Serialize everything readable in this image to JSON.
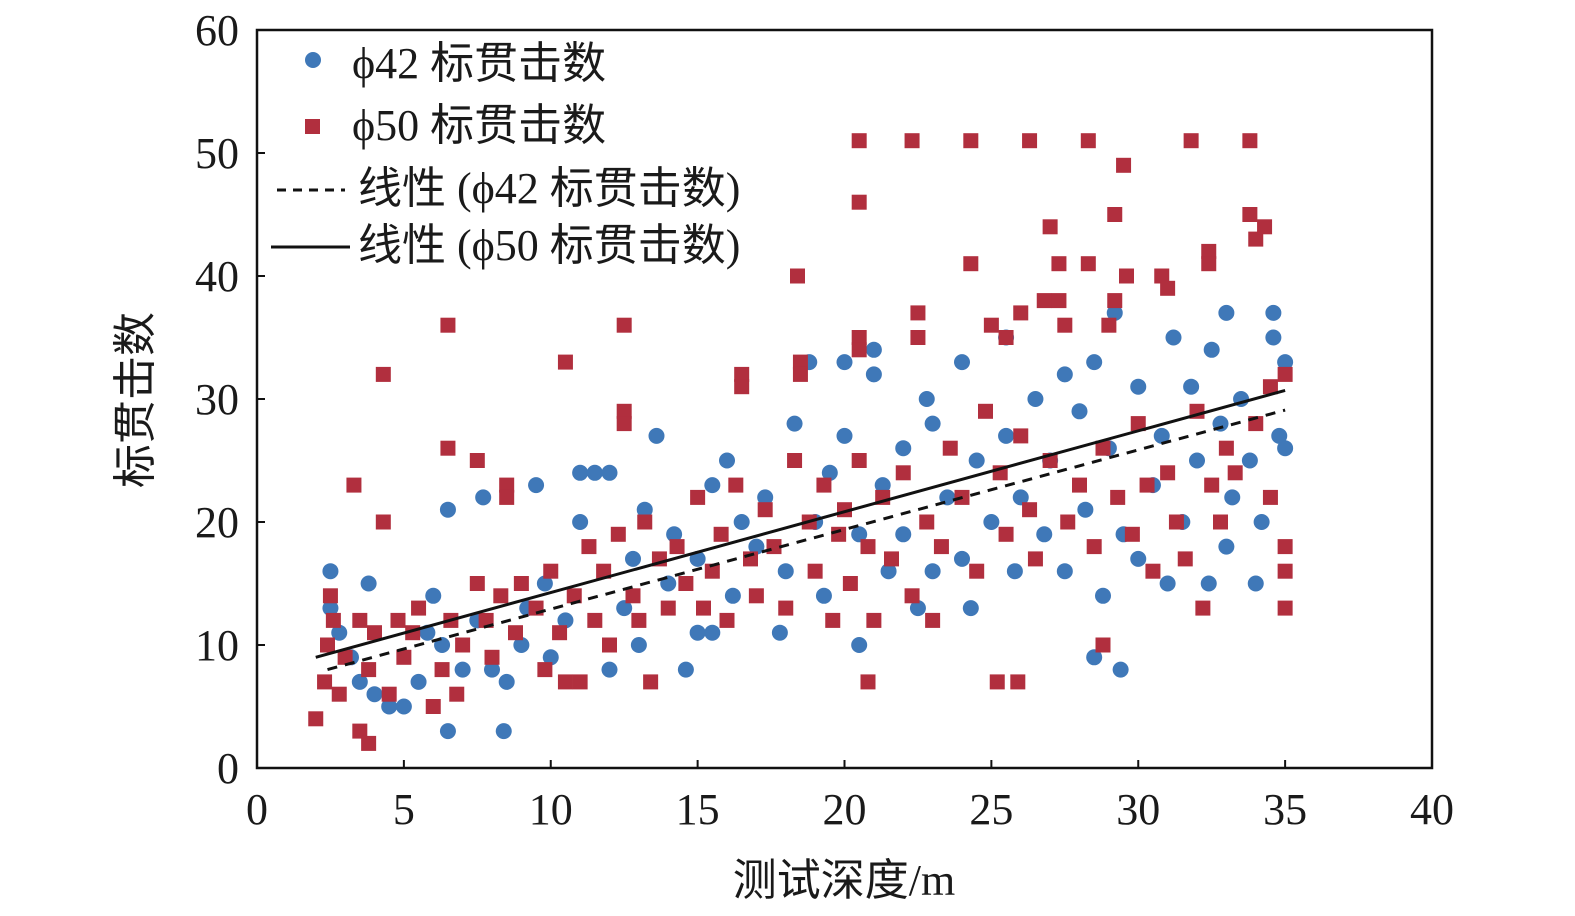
{
  "chart_data": {
    "type": "scatter",
    "title": "",
    "xlabel": "测试深度/m",
    "ylabel": "标贯击数",
    "xlim": [
      0,
      40
    ],
    "ylim": [
      0,
      60
    ],
    "xticks": [
      "0",
      "5",
      "10",
      "15",
      "20",
      "25",
      "30",
      "35",
      "40"
    ],
    "yticks": [
      "0",
      "10",
      "20",
      "30",
      "40",
      "50",
      "60"
    ],
    "grid": false,
    "legend_position": "top-left",
    "series": [
      {
        "name": "ϕ42 标贯击数",
        "marker": "circle",
        "color": "#3f78b8",
        "points": [
          [
            2.5,
            16
          ],
          [
            2.5,
            13
          ],
          [
            3.8,
            15
          ],
          [
            2.8,
            11
          ],
          [
            3.2,
            9
          ],
          [
            3.5,
            7
          ],
          [
            4,
            6
          ],
          [
            4.5,
            5
          ],
          [
            5,
            5
          ],
          [
            5.5,
            7
          ],
          [
            5.8,
            11
          ],
          [
            6,
            14
          ],
          [
            6.3,
            10
          ],
          [
            6.5,
            3
          ],
          [
            6.5,
            21
          ],
          [
            7,
            8
          ],
          [
            7.5,
            12
          ],
          [
            7.7,
            22
          ],
          [
            8,
            8
          ],
          [
            8.4,
            3
          ],
          [
            8.5,
            7
          ],
          [
            9,
            10
          ],
          [
            9.2,
            13
          ],
          [
            9.5,
            23
          ],
          [
            9.8,
            15
          ],
          [
            10,
            9
          ],
          [
            10.5,
            12
          ],
          [
            11,
            20
          ],
          [
            11,
            24
          ],
          [
            11.5,
            24
          ],
          [
            12,
            24
          ],
          [
            12,
            8
          ],
          [
            12.5,
            13
          ],
          [
            12.8,
            17
          ],
          [
            13,
            10
          ],
          [
            13.2,
            21
          ],
          [
            13.6,
            27
          ],
          [
            14,
            15
          ],
          [
            14.2,
            19
          ],
          [
            14.6,
            8
          ],
          [
            15,
            11
          ],
          [
            15.5,
            11
          ],
          [
            15,
            17
          ],
          [
            15.5,
            23
          ],
          [
            16,
            25
          ],
          [
            16.2,
            14
          ],
          [
            16.5,
            20
          ],
          [
            17,
            18
          ],
          [
            17.3,
            22
          ],
          [
            17.8,
            11
          ],
          [
            18,
            16
          ],
          [
            18.3,
            28
          ],
          [
            18.8,
            33
          ],
          [
            19,
            20
          ],
          [
            19.3,
            14
          ],
          [
            19.5,
            24
          ],
          [
            20,
            33
          ],
          [
            20,
            27
          ],
          [
            20.5,
            10
          ],
          [
            20.5,
            19
          ],
          [
            21,
            32
          ],
          [
            21,
            34
          ],
          [
            21.3,
            23
          ],
          [
            21.5,
            16
          ],
          [
            22,
            26
          ],
          [
            22,
            19
          ],
          [
            22.5,
            13
          ],
          [
            22.8,
            30
          ],
          [
            23,
            28
          ],
          [
            23,
            16
          ],
          [
            23.5,
            22
          ],
          [
            24,
            33
          ],
          [
            24,
            17
          ],
          [
            24.3,
            13
          ],
          [
            24.5,
            25
          ],
          [
            25,
            20
          ],
          [
            25.5,
            35
          ],
          [
            25.5,
            27
          ],
          [
            25.8,
            16
          ],
          [
            26,
            22
          ],
          [
            26.5,
            30
          ],
          [
            26.8,
            19
          ],
          [
            27,
            25
          ],
          [
            27.5,
            32
          ],
          [
            27.5,
            16
          ],
          [
            28,
            29
          ],
          [
            28.2,
            21
          ],
          [
            28.5,
            33
          ],
          [
            28.5,
            9
          ],
          [
            28.8,
            14
          ],
          [
            29,
            26
          ],
          [
            29.2,
            37
          ],
          [
            29.4,
            8
          ],
          [
            29.5,
            19
          ],
          [
            30,
            31
          ],
          [
            30,
            17
          ],
          [
            30.5,
            23
          ],
          [
            30.8,
            27
          ],
          [
            31,
            15
          ],
          [
            31.2,
            35
          ],
          [
            31.5,
            20
          ],
          [
            31.8,
            31
          ],
          [
            32,
            25
          ],
          [
            32.4,
            15
          ],
          [
            32.5,
            34
          ],
          [
            32.8,
            28
          ],
          [
            33,
            37
          ],
          [
            33,
            18
          ],
          [
            33.2,
            22
          ],
          [
            33.5,
            30
          ],
          [
            33.8,
            25
          ],
          [
            34,
            15
          ],
          [
            34.2,
            20
          ],
          [
            34.6,
            37
          ],
          [
            34.6,
            35
          ],
          [
            34.8,
            27
          ],
          [
            35,
            33
          ],
          [
            35,
            26
          ]
        ]
      },
      {
        "name": "ϕ50 标贯击数",
        "marker": "square",
        "color": "#b12f3e",
        "points": [
          [
            2,
            4
          ],
          [
            2.3,
            7
          ],
          [
            2.4,
            10
          ],
          [
            2.5,
            14
          ],
          [
            2.6,
            12
          ],
          [
            2.8,
            6
          ],
          [
            3,
            9
          ],
          [
            3.3,
            23
          ],
          [
            3.5,
            3
          ],
          [
            3.5,
            12
          ],
          [
            3.8,
            2
          ],
          [
            3.8,
            8
          ],
          [
            4,
            11
          ],
          [
            4.3,
            32
          ],
          [
            4.3,
            20
          ],
          [
            4.5,
            6
          ],
          [
            4.8,
            12
          ],
          [
            5,
            9
          ],
          [
            5.3,
            11
          ],
          [
            5.5,
            13
          ],
          [
            6,
            5
          ],
          [
            6.3,
            8
          ],
          [
            6.5,
            36
          ],
          [
            6.5,
            26
          ],
          [
            6.6,
            12
          ],
          [
            6.8,
            6
          ],
          [
            7,
            10
          ],
          [
            7.5,
            25
          ],
          [
            7.5,
            15
          ],
          [
            7.8,
            12
          ],
          [
            8,
            9
          ],
          [
            8.3,
            14
          ],
          [
            8.5,
            23
          ],
          [
            8.5,
            22
          ],
          [
            8.8,
            11
          ],
          [
            9,
            15
          ],
          [
            9.5,
            13
          ],
          [
            9.8,
            8
          ],
          [
            10,
            16
          ],
          [
            10.3,
            11
          ],
          [
            10.5,
            33
          ],
          [
            10.5,
            7
          ],
          [
            10.8,
            14
          ],
          [
            11,
            7
          ],
          [
            11.3,
            18
          ],
          [
            11.5,
            12
          ],
          [
            11.8,
            16
          ],
          [
            12,
            10
          ],
          [
            12.3,
            19
          ],
          [
            12.5,
            36
          ],
          [
            12.5,
            29
          ],
          [
            12.5,
            28
          ],
          [
            12.8,
            14
          ],
          [
            13,
            12
          ],
          [
            13.2,
            20
          ],
          [
            13.4,
            7
          ],
          [
            13.7,
            17
          ],
          [
            14,
            13
          ],
          [
            14.3,
            18
          ],
          [
            14.6,
            15
          ],
          [
            15,
            22
          ],
          [
            15.2,
            13
          ],
          [
            15.5,
            16
          ],
          [
            15.8,
            19
          ],
          [
            16,
            12
          ],
          [
            16.3,
            23
          ],
          [
            16.5,
            32
          ],
          [
            16.5,
            31
          ],
          [
            16.8,
            17
          ],
          [
            17,
            14
          ],
          [
            17.3,
            21
          ],
          [
            17.6,
            18
          ],
          [
            18,
            13
          ],
          [
            18.3,
            25
          ],
          [
            18.4,
            40
          ],
          [
            18.5,
            33
          ],
          [
            18.5,
            32
          ],
          [
            18.8,
            20
          ],
          [
            19,
            16
          ],
          [
            19.3,
            23
          ],
          [
            19.6,
            12
          ],
          [
            19.8,
            19
          ],
          [
            20,
            21
          ],
          [
            20.2,
            15
          ],
          [
            20.5,
            51
          ],
          [
            20.5,
            46
          ],
          [
            20.5,
            35
          ],
          [
            20.5,
            34
          ],
          [
            20.5,
            25
          ],
          [
            20.8,
            7
          ],
          [
            20.8,
            18
          ],
          [
            21,
            12
          ],
          [
            21.3,
            22
          ],
          [
            21.6,
            17
          ],
          [
            22,
            24
          ],
          [
            22.3,
            51
          ],
          [
            22.3,
            14
          ],
          [
            22.5,
            37
          ],
          [
            22.5,
            35
          ],
          [
            22.8,
            20
          ],
          [
            23,
            12
          ],
          [
            23.3,
            18
          ],
          [
            23.6,
            26
          ],
          [
            24,
            22
          ],
          [
            24.3,
            51
          ],
          [
            24.3,
            41
          ],
          [
            24.5,
            16
          ],
          [
            24.8,
            29
          ],
          [
            25,
            36
          ],
          [
            25.2,
            7
          ],
          [
            25.3,
            24
          ],
          [
            25.5,
            35
          ],
          [
            25.5,
            19
          ],
          [
            25.9,
            7
          ],
          [
            26,
            37
          ],
          [
            26,
            27
          ],
          [
            26.3,
            51
          ],
          [
            26.3,
            21
          ],
          [
            26.5,
            17
          ],
          [
            26.8,
            38
          ],
          [
            27,
            44
          ],
          [
            27,
            25
          ],
          [
            27.3,
            41
          ],
          [
            27.3,
            38
          ],
          [
            27.5,
            36
          ],
          [
            27.6,
            20
          ],
          [
            28,
            23
          ],
          [
            28.3,
            51
          ],
          [
            28.3,
            41
          ],
          [
            28.5,
            18
          ],
          [
            28.8,
            10
          ],
          [
            28.8,
            26
          ],
          [
            29,
            36
          ],
          [
            29.2,
            45
          ],
          [
            29.2,
            38
          ],
          [
            29.3,
            22
          ],
          [
            29.5,
            49
          ],
          [
            29.6,
            40
          ],
          [
            29.8,
            19
          ],
          [
            30,
            28
          ],
          [
            30.3,
            23
          ],
          [
            30.5,
            16
          ],
          [
            30.8,
            40
          ],
          [
            31,
            39
          ],
          [
            31,
            24
          ],
          [
            31.3,
            20
          ],
          [
            31.6,
            17
          ],
          [
            31.8,
            51
          ],
          [
            32,
            29
          ],
          [
            32.2,
            13
          ],
          [
            32.4,
            42
          ],
          [
            32.4,
            41
          ],
          [
            32.5,
            23
          ],
          [
            32.8,
            20
          ],
          [
            33,
            26
          ],
          [
            33.3,
            24
          ],
          [
            33.8,
            51
          ],
          [
            33.8,
            45
          ],
          [
            34,
            43
          ],
          [
            34,
            28
          ],
          [
            34.3,
            44
          ],
          [
            34.5,
            31
          ],
          [
            34.5,
            22
          ],
          [
            35,
            32
          ],
          [
            35,
            18
          ],
          [
            35,
            16
          ],
          [
            35,
            13
          ]
        ]
      }
    ],
    "trendlines": [
      {
        "name": "线性 (ϕ42 标贯击数)",
        "style": "dashed",
        "color": "#111111",
        "x": [
          2.4,
          35
        ],
        "y": [
          8.0,
          29.1
        ]
      },
      {
        "name": "线性 (ϕ50 标贯击数)",
        "style": "solid",
        "color": "#111111",
        "x": [
          2.0,
          35
        ],
        "y": [
          9.0,
          30.7
        ]
      }
    ]
  }
}
